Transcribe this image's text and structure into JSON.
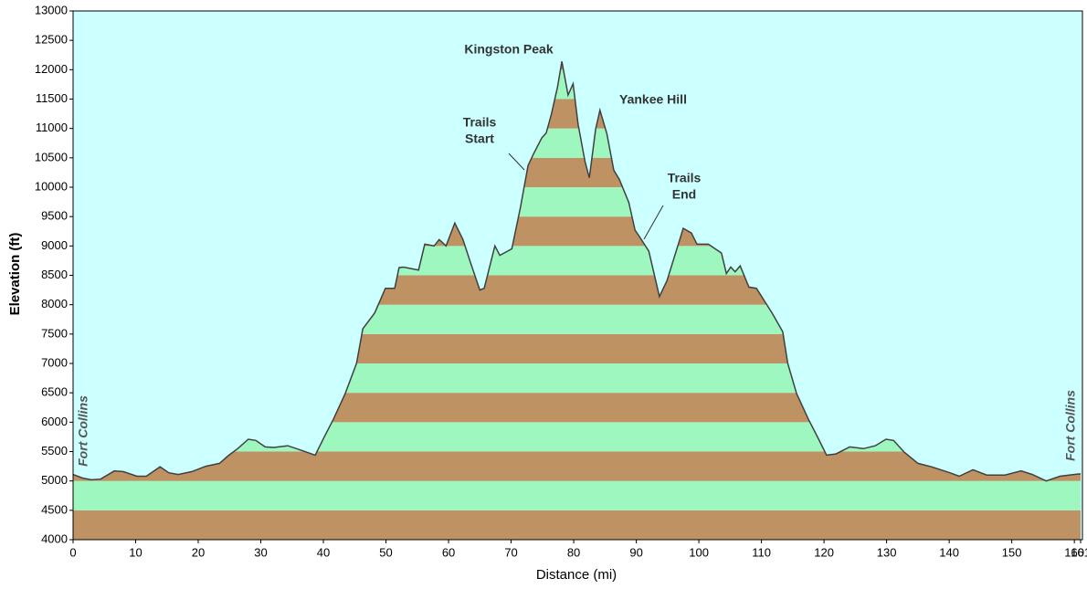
{
  "chart_data": {
    "type": "area",
    "xlabel": "Distance   (mi)",
    "ylabel": "Elevation (ft)",
    "x": [
      0,
      1.5,
      2.9,
      4.4,
      6.6,
      8,
      10.2,
      11.7,
      13.9,
      15.3,
      16.8,
      19,
      21.2,
      23.4,
      24.8,
      26.3,
      28,
      29.2,
      30.7,
      32.1,
      34.3,
      36.5,
      38.7,
      40.1,
      41.6,
      43.5,
      45.3,
      46.3,
      48.2,
      49.9,
      51.4,
      52.1,
      52.8,
      55.2,
      56.2,
      57.7,
      58.5,
      59.6,
      61,
      62.3,
      63.5,
      65,
      65.7,
      67.4,
      68.2,
      70.1,
      71.5,
      72.7,
      73.6,
      74.9,
      75.6,
      76.4,
      77.4,
      78.1,
      79.1,
      79.9,
      80.7,
      81.8,
      82.5,
      83.5,
      84.2,
      85.3,
      86.4,
      87.3,
      88.8,
      89.8,
      90.5,
      92,
      93.7,
      94.9,
      97.5,
      98.8,
      99.7,
      101.5,
      103.6,
      104.4,
      105.1,
      105.8,
      106.6,
      108,
      109.2,
      111.7,
      113.4,
      114.2,
      115.6,
      117.5,
      119,
      120.4,
      121.9,
      124.1,
      126.3,
      128.2,
      129.9,
      131.1,
      132.8,
      135,
      137.2,
      140.1,
      141.6,
      143.8,
      146,
      148.9,
      151.5,
      153.3,
      155.5,
      157.7,
      159.9,
      161
    ],
    "y": [
      5110,
      5050,
      5020,
      5030,
      5170,
      5160,
      5080,
      5080,
      5240,
      5140,
      5110,
      5160,
      5250,
      5300,
      5430,
      5550,
      5710,
      5690,
      5580,
      5570,
      5600,
      5520,
      5440,
      5740,
      6050,
      6490,
      7000,
      7590,
      7860,
      8280,
      8280,
      8630,
      8640,
      8590,
      9030,
      9000,
      9110,
      9000,
      9390,
      9110,
      8720,
      8250,
      8280,
      9000,
      8840,
      8950,
      9660,
      10370,
      10570,
      10840,
      10920,
      11230,
      11700,
      12140,
      11570,
      11760,
      11070,
      10440,
      10160,
      10990,
      11310,
      10910,
      10290,
      10130,
      9740,
      9270,
      9160,
      8910,
      8140,
      8410,
      9300,
      9220,
      9030,
      9030,
      8880,
      8530,
      8640,
      8560,
      8660,
      8300,
      8280,
      7860,
      7540,
      7000,
      6490,
      6050,
      5740,
      5440,
      5460,
      5580,
      5550,
      5600,
      5710,
      5690,
      5490,
      5300,
      5240,
      5140,
      5080,
      5190,
      5100,
      5100,
      5170,
      5110,
      5000,
      5080,
      5110,
      5120
    ],
    "xlim": [
      0,
      161
    ],
    "ylim": [
      4000,
      13000
    ],
    "xticks": [
      0,
      10,
      20,
      30,
      40,
      50,
      60,
      70,
      80,
      90,
      100,
      110,
      120,
      130,
      140,
      150,
      160,
      161
    ],
    "yticks": [
      4000,
      4500,
      5000,
      5500,
      6000,
      6500,
      7000,
      7500,
      8000,
      8500,
      9000,
      9500,
      10000,
      10500,
      11000,
      11500,
      12000,
      12500,
      13000
    ],
    "band_colors": [
      "#bf9264",
      "#9ff7c0"
    ],
    "background": "#ccffff",
    "line_color": "#404040",
    "annotations": [
      [
        "Kingston Peak"
      ],
      [
        "Yankee Hill"
      ],
      [
        "Trails",
        "Start"
      ],
      [
        "Trails",
        "End"
      ],
      [
        "Fort Collins"
      ],
      [
        "Fort Collins"
      ]
    ]
  }
}
